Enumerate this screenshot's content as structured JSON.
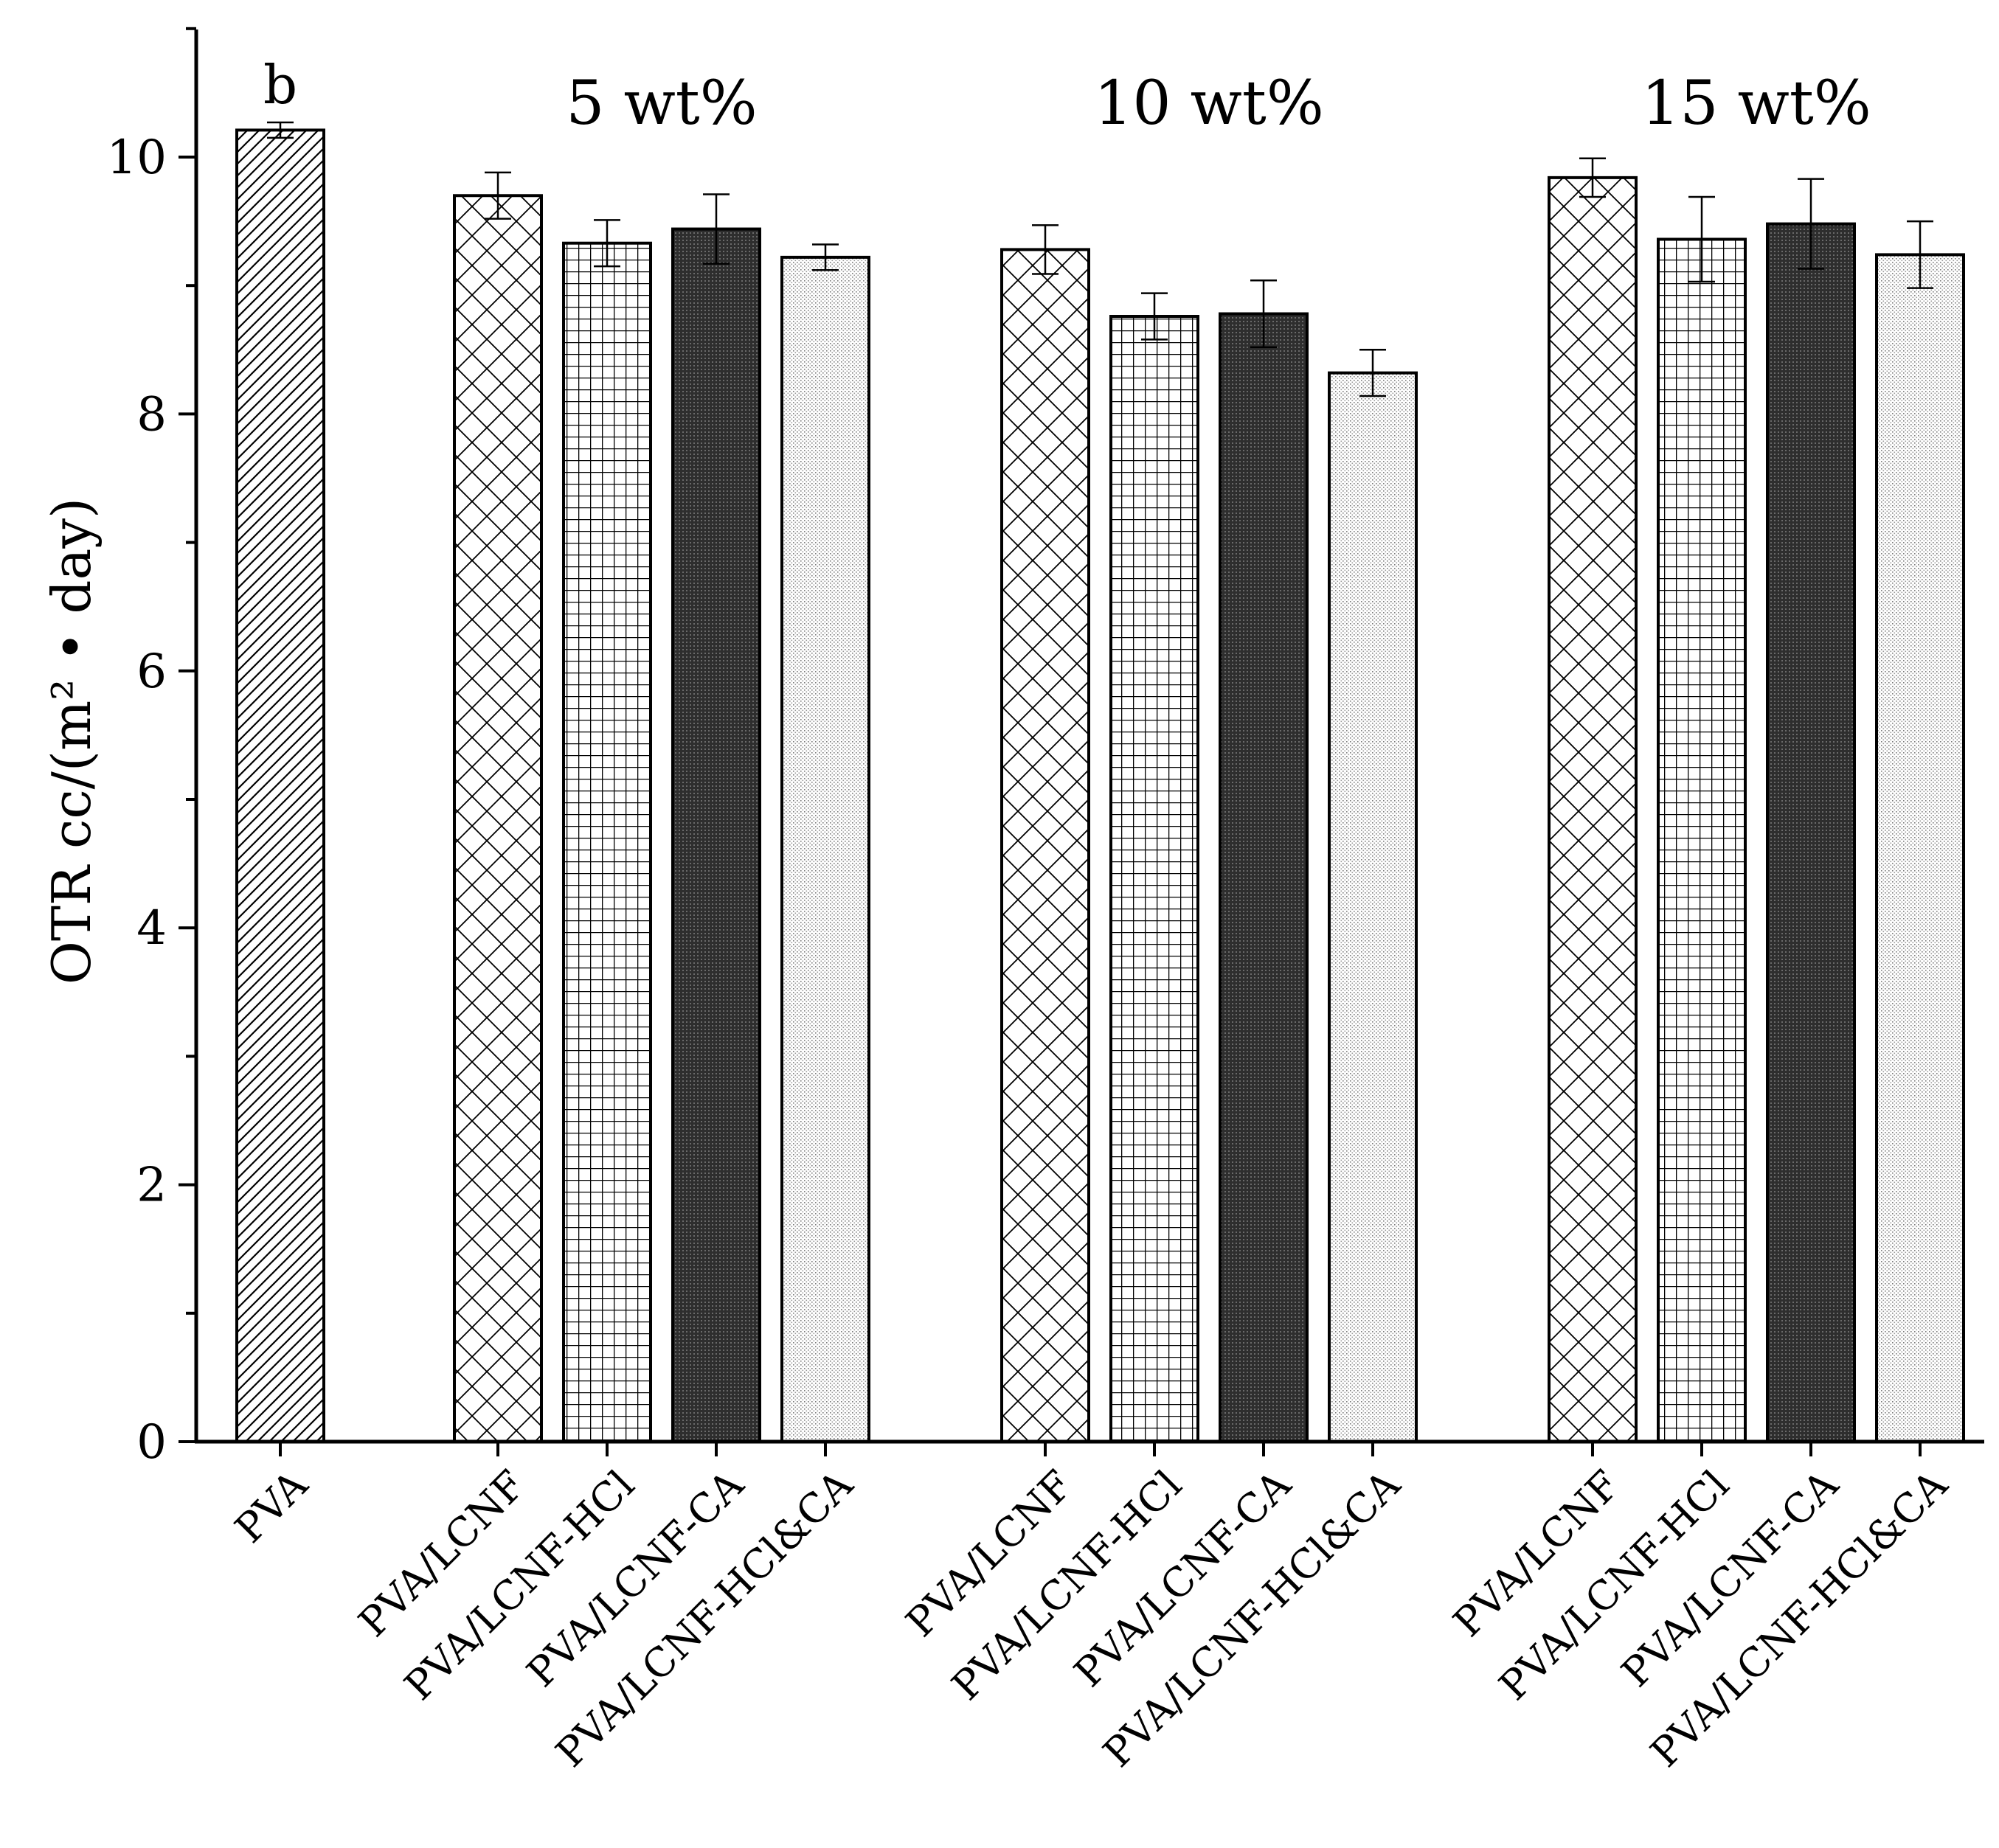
{
  "chart_data": {
    "type": "bar",
    "title": "",
    "xlabel": "",
    "ylabel": "OTR cc/(m² • day)",
    "ylim": [
      0,
      11
    ],
    "yticks": [
      0,
      2,
      4,
      6,
      8,
      10
    ],
    "group_labels": [
      "5 wt%",
      "10 wt%",
      "15 wt%"
    ],
    "annotation": "b",
    "categories": [
      "PVA",
      "PVA/LCNF",
      "PVA/LCNF-HCl",
      "PVA/LCNF-CA",
      "PVA/LCNF-HCl&CA",
      "PVA/LCNF",
      "PVA/LCNF-HCl",
      "PVA/LCNF-CA",
      "PVA/LCNF-HCl&CA",
      "PVA/LCNF",
      "PVA/LCNF-HCl",
      "PVA/LCNF-CA",
      "PVA/LCNF-HCl&CA"
    ],
    "groups": [
      "",
      "5 wt%",
      "5 wt%",
      "5 wt%",
      "5 wt%",
      "10 wt%",
      "10 wt%",
      "10 wt%",
      "10 wt%",
      "15 wt%",
      "15 wt%",
      "15 wt%",
      "15 wt%"
    ],
    "patterns": [
      "diag",
      "cross",
      "grid",
      "dark",
      "dots",
      "cross",
      "grid",
      "dark",
      "dots",
      "cross",
      "grid",
      "dark",
      "dots"
    ],
    "values": [
      10.21,
      9.7,
      9.33,
      9.44,
      9.22,
      9.28,
      8.76,
      8.78,
      8.32,
      9.84,
      9.36,
      9.48,
      9.24
    ],
    "errors": [
      0.06,
      0.18,
      0.18,
      0.27,
      0.1,
      0.19,
      0.18,
      0.26,
      0.18,
      0.15,
      0.33,
      0.35,
      0.26
    ]
  }
}
